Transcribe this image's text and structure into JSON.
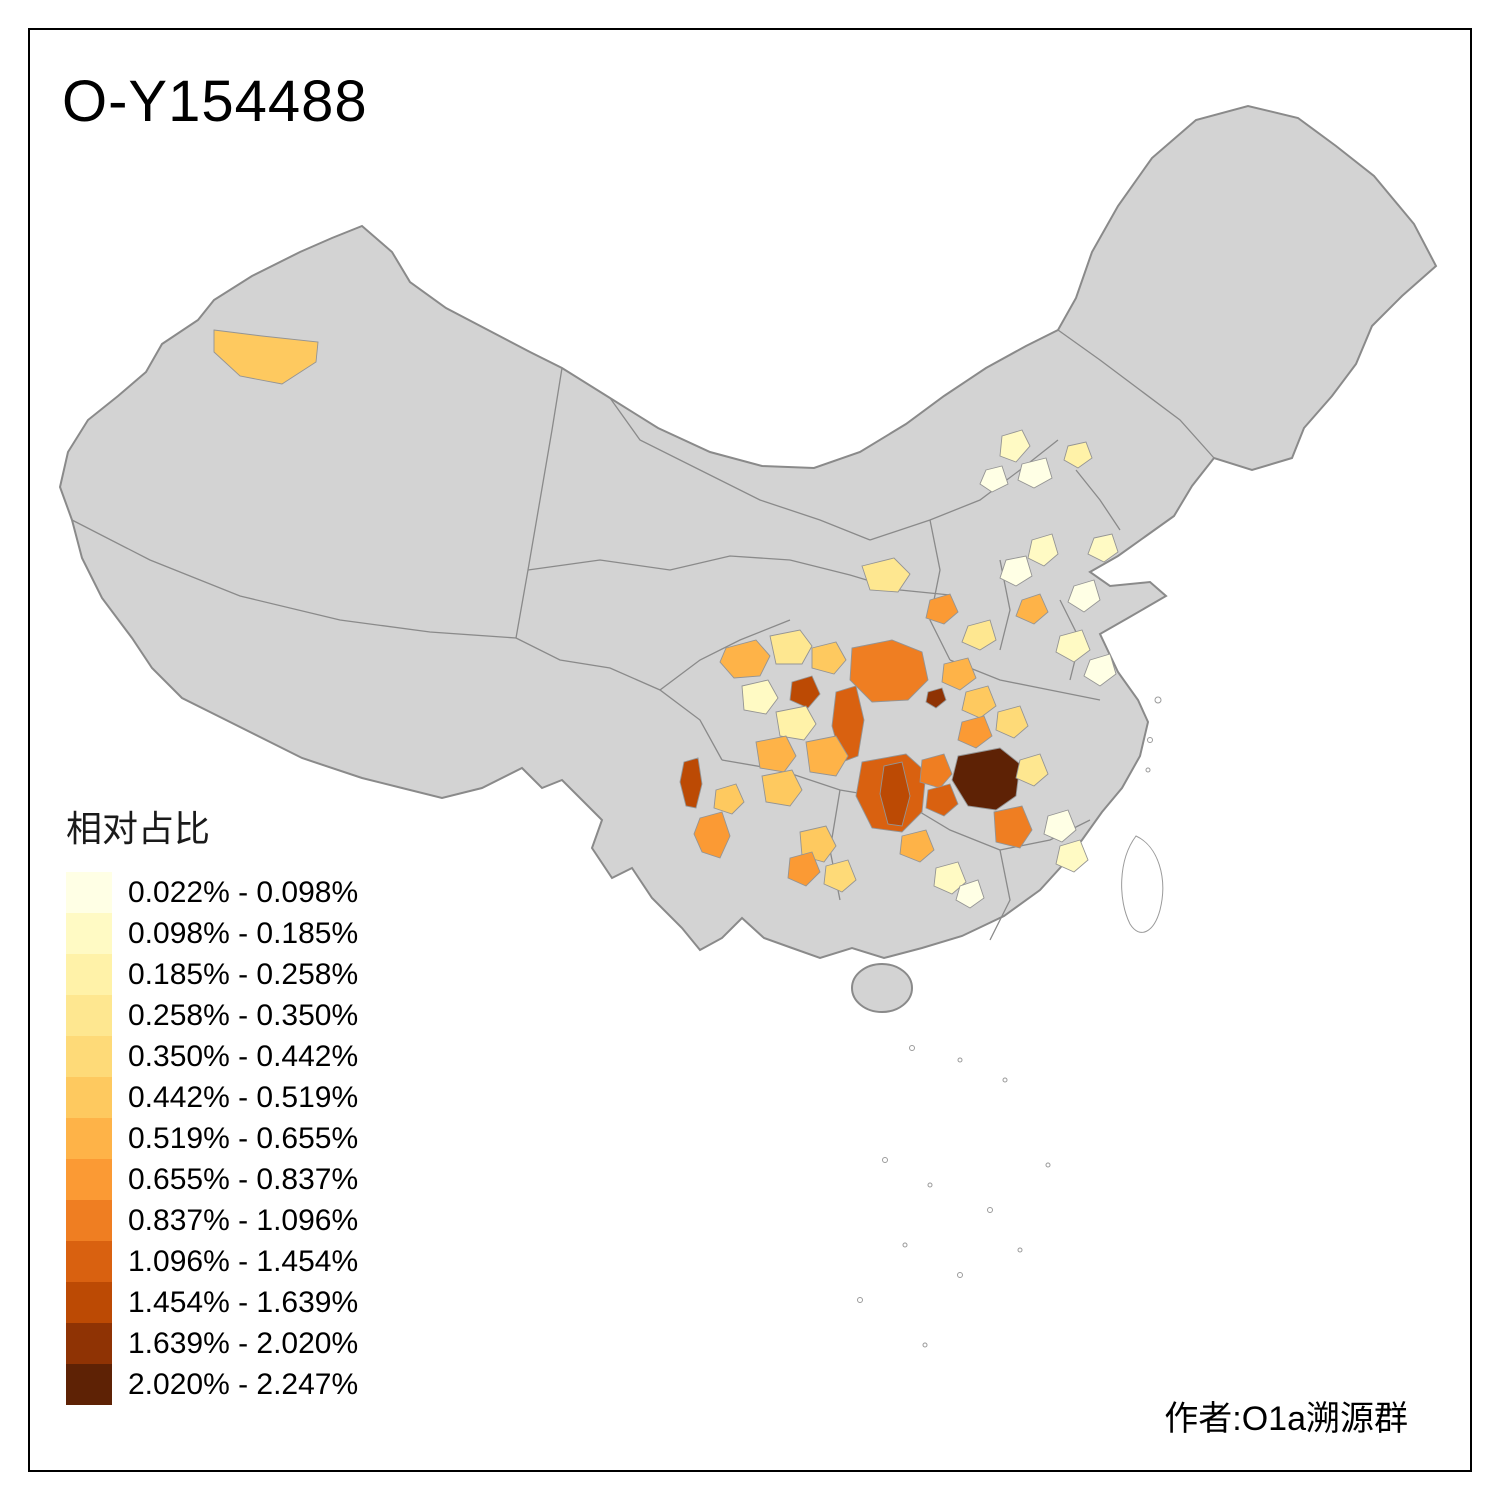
{
  "title": "O-Y154488",
  "credit": "作者:O1a溯源群",
  "legend": {
    "title": "相对占比",
    "items": [
      {
        "label": "0.022% - 0.098%",
        "color": "#FFFFE5"
      },
      {
        "label": "0.098% - 0.185%",
        "color": "#FFFAC4"
      },
      {
        "label": "0.185% - 0.258%",
        "color": "#FFF2A8"
      },
      {
        "label": "0.258% - 0.350%",
        "color": "#FEE790"
      },
      {
        "label": "0.350% - 0.442%",
        "color": "#FEDA78"
      },
      {
        "label": "0.442% - 0.519%",
        "color": "#FEC95F"
      },
      {
        "label": "0.519% - 0.655%",
        "color": "#FEB348"
      },
      {
        "label": "0.655% - 0.837%",
        "color": "#FB9A34"
      },
      {
        "label": "0.837% - 1.096%",
        "color": "#EF7E22"
      },
      {
        "label": "1.096% - 1.454%",
        "color": "#D96110"
      },
      {
        "label": "1.454% - 1.639%",
        "color": "#BC4A04"
      },
      {
        "label": "1.639% - 2.020%",
        "color": "#8F3304"
      },
      {
        "label": "2.020% - 2.247%",
        "color": "#5E2205"
      }
    ]
  },
  "map": {
    "land_color": "#D3D3D3",
    "border_color": "#8A8A8A",
    "background": "#FFFFFF"
  }
}
